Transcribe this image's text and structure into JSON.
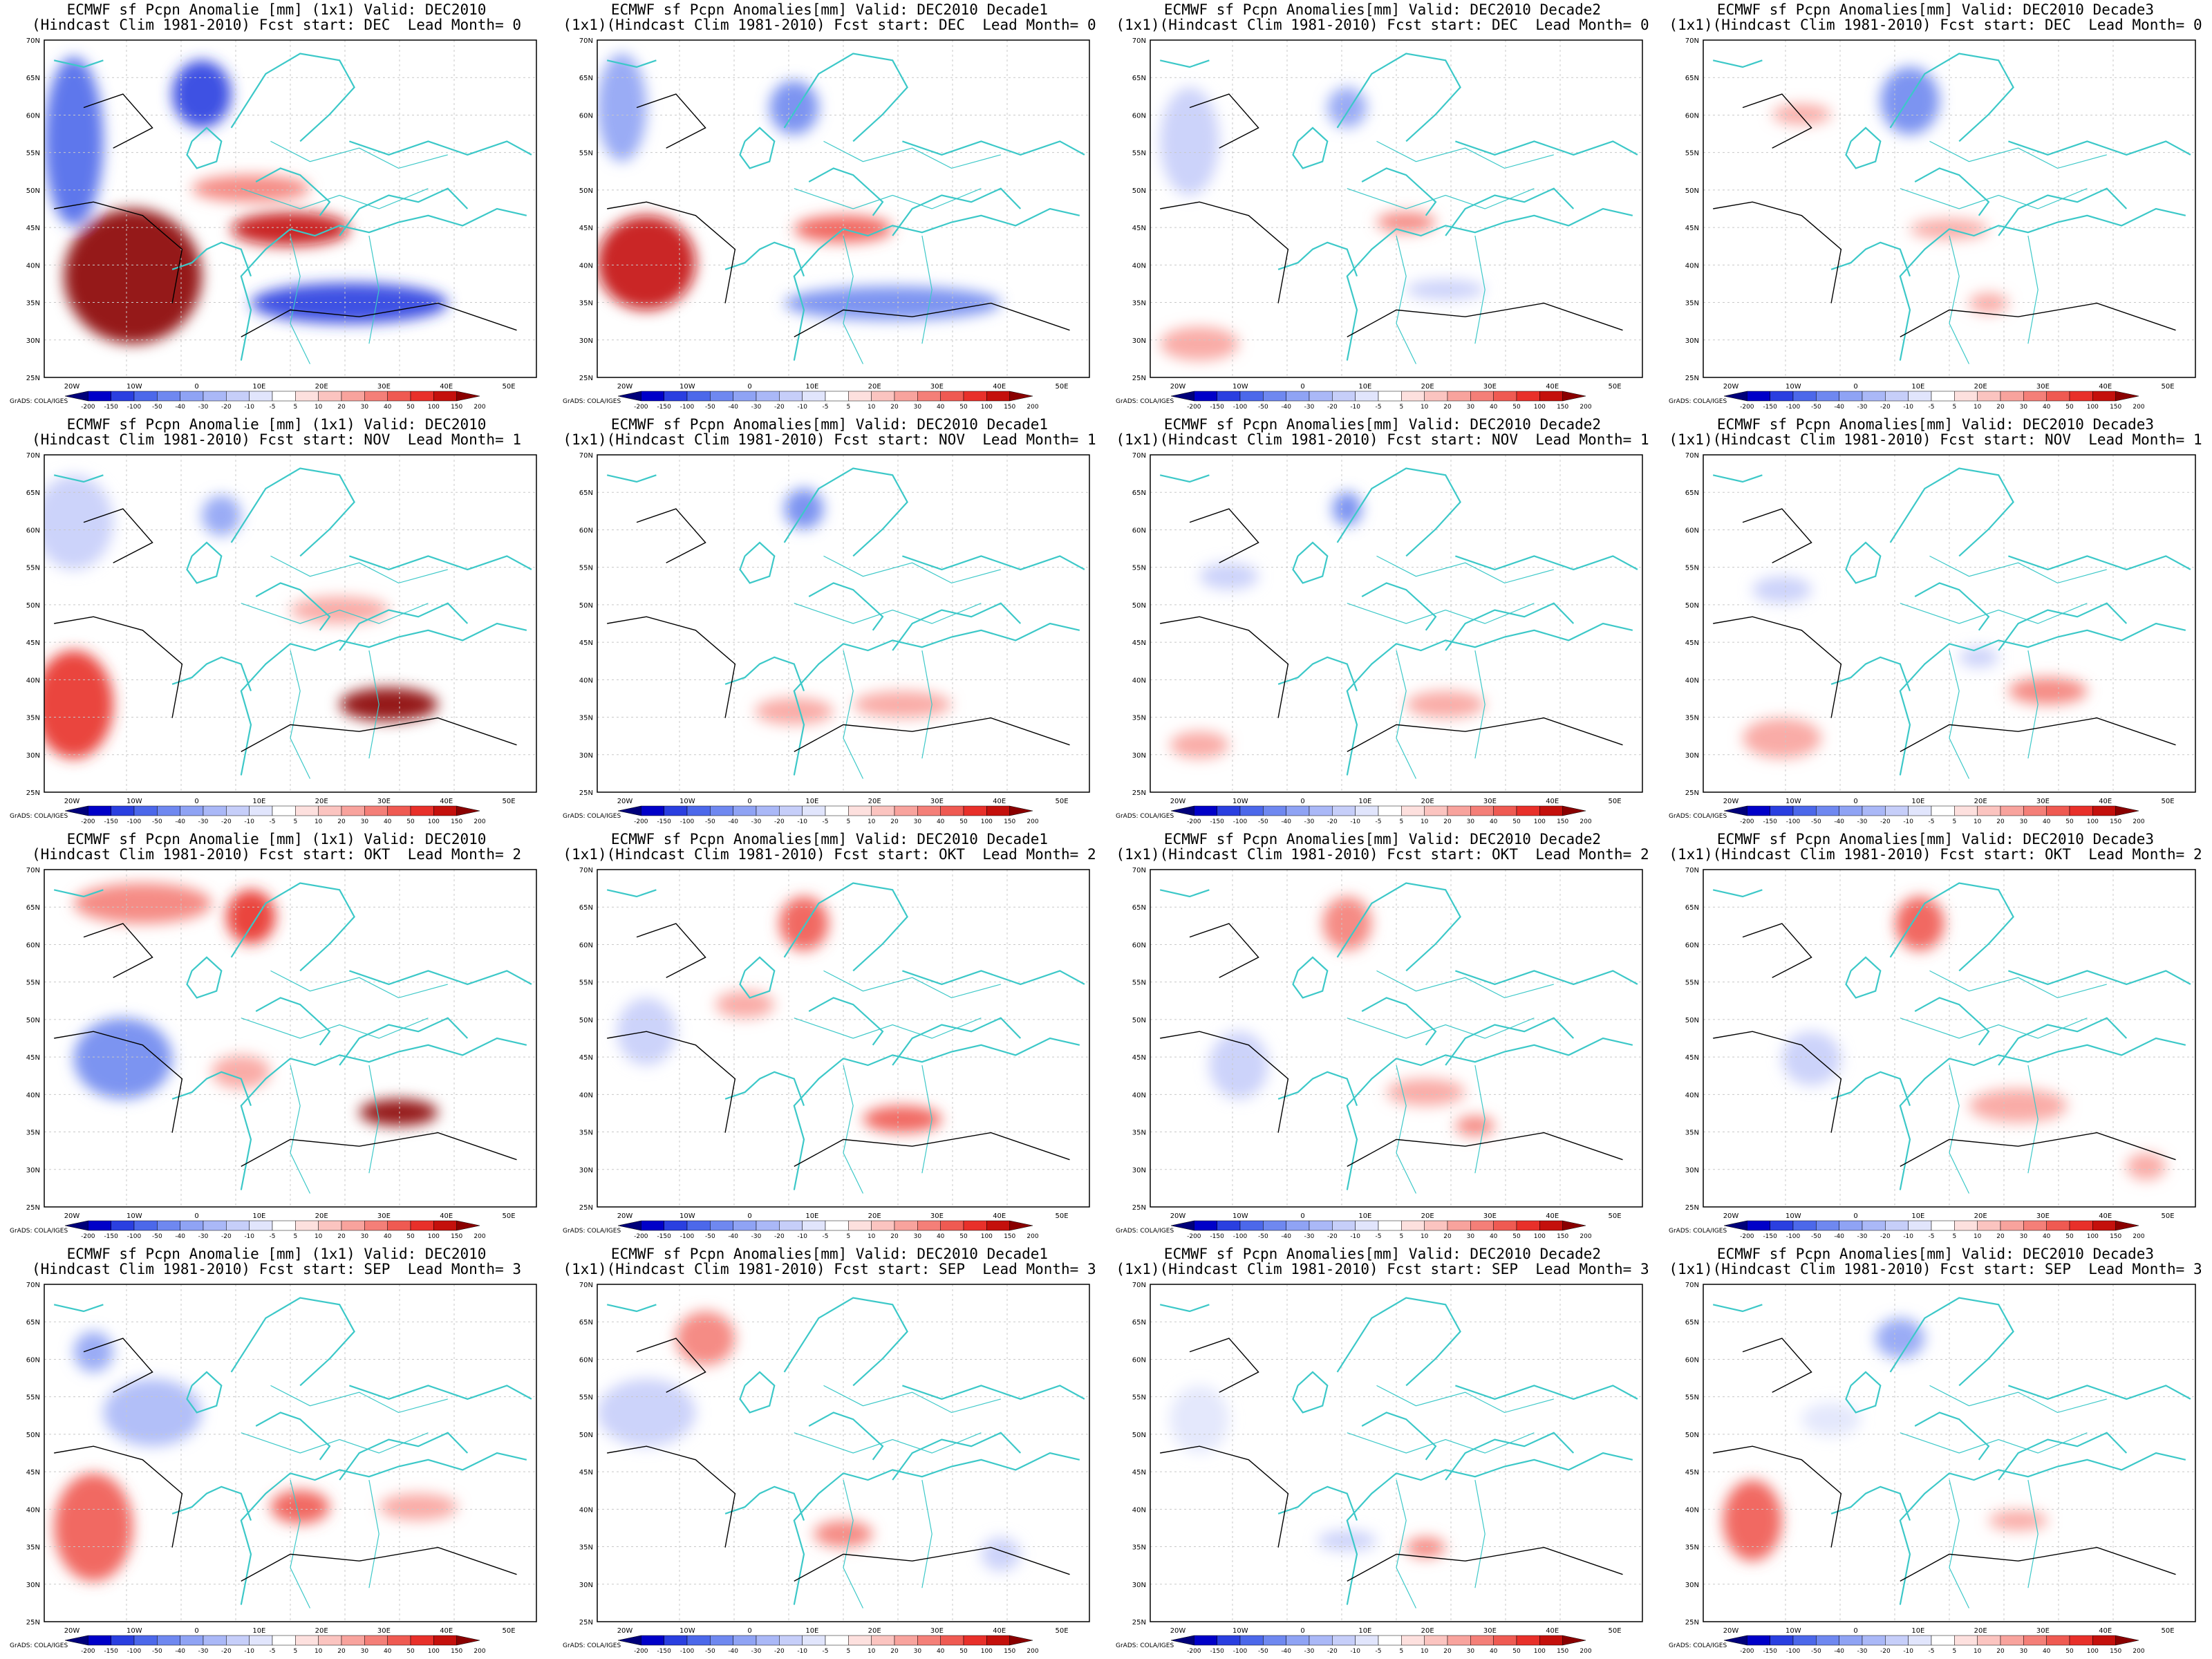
{
  "rows": [
    {
      "fcst_start": "DEC",
      "lead": "0"
    },
    {
      "fcst_start": "NOV",
      "lead": "1"
    },
    {
      "fcst_start": "OKT",
      "lead": "2"
    },
    {
      "fcst_start": "SEP",
      "lead": "3"
    }
  ],
  "columns": [
    {
      "title1": "ECMWF sf Pcpn Anomalie [mm] (1x1) Valid: DEC2010",
      "title2_prefix": "(Hindcast Clim 1981-2010) Fcst start: "
    },
    {
      "title1": "ECMWF sf Pcpn Anomalies[mm] Valid: DEC2010 Decade1",
      "title2_prefix": "(1x1)(Hindcast Clim 1981-2010) Fcst start: "
    },
    {
      "title1": "ECMWF sf Pcpn Anomalies[mm] Valid: DEC2010 Decade2",
      "title2_prefix": "(1x1)(Hindcast Clim 1981-2010) Fcst start: "
    },
    {
      "title1": "ECMWF sf Pcpn Anomalies[mm] Valid: DEC2010 Decade3",
      "title2_prefix": "(1x1)(Hindcast Clim 1981-2010) Fcst start: "
    }
  ],
  "lead_label": "Lead Month= ",
  "lat_ticks": [
    "70N",
    "65N",
    "60N",
    "55N",
    "50N",
    "45N",
    "40N",
    "35N",
    "30N",
    "25N"
  ],
  "lon_ticks": [
    "20W",
    "10W",
    "0",
    "10E",
    "20E",
    "30E",
    "40E",
    "50E"
  ],
  "colorbar_labels": [
    "-200",
    "-150",
    "-100",
    "-50",
    "-40",
    "-30",
    "-20",
    "-10",
    "-5",
    "5",
    "10",
    "20",
    "30",
    "40",
    "50",
    "100",
    "150",
    "200"
  ],
  "colorbar_colors": [
    "#00007a",
    "#0000c8",
    "#2a3fe0",
    "#4c68ea",
    "#6f88f0",
    "#8fa3f4",
    "#aab8f7",
    "#c6cef9",
    "#e1e5fc",
    "#ffffff",
    "#fde0de",
    "#fbc4c0",
    "#f8a39d",
    "#f47f78",
    "#ef5a52",
    "#e8302a",
    "#c4100c",
    "#8a0000"
  ],
  "credit": "GrADS: COLA/IGES",
  "colors": {
    "coast": "#3cc8c8",
    "contour": "#000000",
    "grid": "#c8c8c8"
  }
}
